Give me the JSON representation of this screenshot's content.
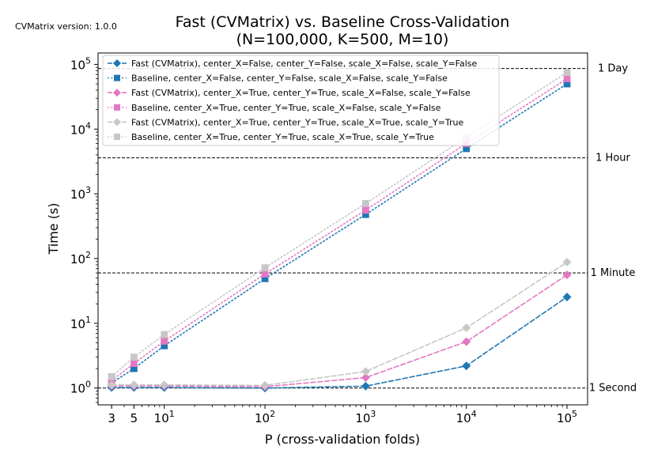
{
  "version_label": "CVMatrix version: 1.0.0",
  "chart_data": {
    "type": "line",
    "title": "Fast (CVMatrix) vs. Baseline Cross-Validation",
    "subtitle": "(N=100,000, K=500, M=10)",
    "xlabel": "P (cross-validation folds)",
    "ylabel": "Time (s)",
    "xscale": "log",
    "yscale": "log",
    "xlim": [
      2.2,
      160000
    ],
    "ylim": [
      0.55,
      150000
    ],
    "grid": false,
    "legend_position": "upper-left",
    "x_ticks": [
      {
        "value": 3,
        "label": "3"
      },
      {
        "value": 5,
        "label": "5"
      },
      {
        "value": 10,
        "base": "10",
        "exp": "1"
      },
      {
        "value": 100,
        "base": "10",
        "exp": "2"
      },
      {
        "value": 1000,
        "base": "10",
        "exp": "3"
      },
      {
        "value": 10000,
        "base": "10",
        "exp": "4"
      },
      {
        "value": 100000,
        "base": "10",
        "exp": "5"
      }
    ],
    "y_ticks": [
      {
        "value": 1,
        "base": "10",
        "exp": "0"
      },
      {
        "value": 10,
        "base": "10",
        "exp": "1"
      },
      {
        "value": 100,
        "base": "10",
        "exp": "2"
      },
      {
        "value": 1000,
        "base": "10",
        "exp": "3"
      },
      {
        "value": 10000,
        "base": "10",
        "exp": "4"
      },
      {
        "value": 100000,
        "base": "10",
        "exp": "5"
      }
    ],
    "reference_lines": [
      {
        "value": 1,
        "label": "1 Second"
      },
      {
        "value": 60,
        "label": "1 Minute"
      },
      {
        "value": 3600,
        "label": "1 Hour"
      },
      {
        "value": 86400,
        "label": "1 Day"
      }
    ],
    "x": [
      3,
      5,
      10,
      100,
      1000,
      10000,
      100000
    ],
    "series": [
      {
        "name": "Fast (CVMatrix), center_X=False, center_Y=False, scale_X=False, scale_Y=False",
        "color": "#1f77b4",
        "marker": "diamond",
        "linestyle": "dashed",
        "values": [
          1.02,
          1.02,
          1.02,
          1.0,
          1.07,
          2.2,
          25.5
        ]
      },
      {
        "name": "Baseline, center_X=False, center_Y=False, scale_X=False, scale_Y=False",
        "color": "#1f77b4",
        "marker": "square",
        "linestyle": "dotted",
        "values": [
          1.2,
          2.0,
          4.5,
          49,
          480,
          5000,
          50000
        ]
      },
      {
        "name": "Fast (CVMatrix), center_X=True, center_Y=True, scale_X=False, scale_Y=False",
        "color": "#e377c2",
        "marker": "diamond",
        "linestyle": "dashed",
        "values": [
          1.08,
          1.08,
          1.08,
          1.05,
          1.45,
          5.2,
          56
        ]
      },
      {
        "name": "Baseline, center_X=True, center_Y=True, scale_X=False, scale_Y=False",
        "color": "#e377c2",
        "marker": "square",
        "linestyle": "dotted",
        "values": [
          1.3,
          2.4,
          5.3,
          58,
          560,
          6000,
          60000
        ]
      },
      {
        "name": "Fast (CVMatrix), center_X=True, center_Y=True, scale_X=True, scale_Y=True",
        "color": "#c7c7c7",
        "marker": "diamond",
        "linestyle": "dashed",
        "values": [
          1.12,
          1.12,
          1.12,
          1.1,
          1.8,
          8.5,
          88
        ]
      },
      {
        "name": "Baseline, center_X=True, center_Y=True, scale_X=True, scale_Y=True",
        "color": "#c7c7c7",
        "marker": "square",
        "linestyle": "dotted",
        "values": [
          1.5,
          3.0,
          6.7,
          72,
          710,
          7500,
          75000
        ]
      }
    ]
  }
}
